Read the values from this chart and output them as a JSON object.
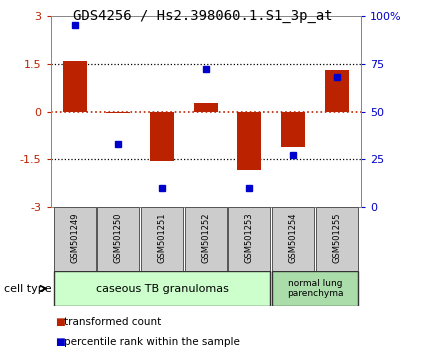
{
  "title": "GDS4256 / Hs2.398060.1.S1_3p_at",
  "samples": [
    "GSM501249",
    "GSM501250",
    "GSM501251",
    "GSM501252",
    "GSM501253",
    "GSM501254",
    "GSM501255"
  ],
  "red_values": [
    1.6,
    -0.05,
    -1.55,
    0.27,
    -1.85,
    -1.1,
    1.3
  ],
  "blue_percentiles": [
    95,
    33,
    10,
    72,
    10,
    27,
    68
  ],
  "ylim": [
    -3,
    3
  ],
  "y2lim": [
    0,
    100
  ],
  "yticks": [
    -3,
    -1.5,
    0,
    1.5,
    3
  ],
  "y2ticks": [
    0,
    25,
    50,
    75,
    100
  ],
  "ytick_labels": [
    "-3",
    "-1.5",
    "0",
    "1.5",
    "3"
  ],
  "y2tick_labels": [
    "0",
    "25",
    "50",
    "75",
    "100%"
  ],
  "hlines": [
    1.5,
    -1.5
  ],
  "group1_label": "caseous TB granulomas",
  "group2_label": "normal lung\nparenchyma",
  "group1_color": "#ccffcc",
  "group2_color": "#aaddaa",
  "sample_bg_color": "#cccccc",
  "cell_type_label": "cell type",
  "legend_red_label": "transformed count",
  "legend_blue_label": "percentile rank within the sample",
  "bar_width": 0.55,
  "red_color": "#bb2200",
  "blue_color": "#0000cc",
  "title_fontsize": 10,
  "tick_fontsize": 8,
  "label_fontsize": 7
}
